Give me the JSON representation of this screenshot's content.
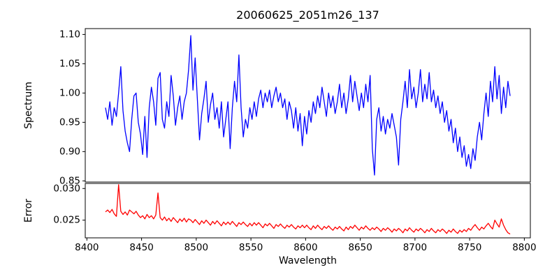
{
  "figure": {
    "background": "#ffffff",
    "axis_color": "#000000",
    "grid": false,
    "legend": null
  },
  "chart_data": [
    {
      "type": "line",
      "panel": "spectrum",
      "title": "20060625_2051m26_137",
      "ylabel": "Spectrum",
      "color": "#0000ff",
      "x_start": 8417,
      "x_step": 2,
      "xlim": [
        8398.5,
        8805.5
      ],
      "ylim": [
        0.848,
        1.11
      ],
      "yticks": [
        0.85,
        0.9,
        0.95,
        1.0,
        1.05,
        1.1
      ],
      "ytick_labels": [
        "0.85",
        "0.90",
        "0.95",
        "1.00",
        "1.05",
        "1.10"
      ],
      "values": [
        0.975,
        0.955,
        0.985,
        0.945,
        0.975,
        0.96,
        1.0,
        1.045,
        0.97,
        0.935,
        0.915,
        0.9,
        0.955,
        0.995,
        1.0,
        0.95,
        0.93,
        0.895,
        0.96,
        0.89,
        0.975,
        1.01,
        0.985,
        0.945,
        1.025,
        1.035,
        0.955,
        0.94,
        0.985,
        0.96,
        1.03,
        0.995,
        0.945,
        0.975,
        0.995,
        0.955,
        0.985,
        1.0,
        1.04,
        1.098,
        1.005,
        1.06,
        0.99,
        0.92,
        0.965,
        0.99,
        1.02,
        0.95,
        0.98,
        1.0,
        0.955,
        0.975,
        0.94,
        0.985,
        0.925,
        0.955,
        0.985,
        0.905,
        0.975,
        1.02,
        0.985,
        1.065,
        0.975,
        0.925,
        0.955,
        0.94,
        0.975,
        0.955,
        0.985,
        0.96,
        0.99,
        1.005,
        0.975,
        1.0,
        0.985,
        1.005,
        0.975,
        0.995,
        1.01,
        0.985,
        1.0,
        0.975,
        0.99,
        0.955,
        0.985,
        0.97,
        0.94,
        0.975,
        0.935,
        0.965,
        0.91,
        0.96,
        0.93,
        0.97,
        0.95,
        0.985,
        0.965,
        0.995,
        0.975,
        1.01,
        0.985,
        0.96,
        1.0,
        0.975,
        0.995,
        0.965,
        0.985,
        1.015,
        0.975,
        1.0,
        0.965,
        0.99,
        1.03,
        0.985,
        1.02,
        0.995,
        0.97,
        1.0,
        0.975,
        1.015,
        0.985,
        1.03,
        0.905,
        0.86,
        0.955,
        0.975,
        0.935,
        0.96,
        0.93,
        0.955,
        0.94,
        0.965,
        0.945,
        0.925,
        0.877,
        0.955,
        0.985,
        1.02,
        0.975,
        1.04,
        0.99,
        1.01,
        0.975,
        1.0,
        1.04,
        0.985,
        1.015,
        0.99,
        1.035,
        0.985,
        1.005,
        0.975,
        0.995,
        0.965,
        0.985,
        0.95,
        0.97,
        0.935,
        0.955,
        0.915,
        0.94,
        0.9,
        0.925,
        0.89,
        0.91,
        0.875,
        0.895,
        0.871,
        0.905,
        0.885,
        0.925,
        0.95,
        0.92,
        0.965,
        1.0,
        0.96,
        1.02,
        0.985,
        1.045,
        0.99,
        1.03,
        0.965,
        1.01,
        0.975,
        1.02,
        0.995
      ]
    },
    {
      "type": "line",
      "panel": "error",
      "ylabel": "Error",
      "xlabel": "Wavelength",
      "color": "#ff0000",
      "x_start": 8417,
      "x_step": 2,
      "xlim": [
        8398.5,
        8805.5
      ],
      "ylim": [
        0.0222,
        0.0308
      ],
      "yticks": [
        0.025,
        0.03
      ],
      "ytick_labels": [
        "0.025",
        "0.030"
      ],
      "xticks": [
        8400,
        8450,
        8500,
        8550,
        8600,
        8650,
        8700,
        8750,
        8800
      ],
      "xtick_labels": [
        "8400",
        "8450",
        "8500",
        "8550",
        "8600",
        "8650",
        "8700",
        "8750",
        "8800"
      ],
      "values": [
        0.0263,
        0.0266,
        0.0262,
        0.0267,
        0.026,
        0.0256,
        0.0306,
        0.0264,
        0.0259,
        0.0263,
        0.0258,
        0.0266,
        0.0263,
        0.026,
        0.0264,
        0.0258,
        0.0254,
        0.0257,
        0.0252,
        0.0259,
        0.0254,
        0.0257,
        0.0252,
        0.0258,
        0.0293,
        0.0254,
        0.025,
        0.0255,
        0.0249,
        0.0253,
        0.0248,
        0.0254,
        0.025,
        0.0246,
        0.0252,
        0.0248,
        0.0253,
        0.0247,
        0.0252,
        0.025,
        0.0246,
        0.0251,
        0.0247,
        0.0243,
        0.0249,
        0.0245,
        0.025,
        0.0246,
        0.0242,
        0.0248,
        0.0244,
        0.0249,
        0.0245,
        0.0241,
        0.0247,
        0.0243,
        0.0247,
        0.0243,
        0.0248,
        0.0244,
        0.024,
        0.0246,
        0.0243,
        0.0247,
        0.0243,
        0.024,
        0.0245,
        0.0241,
        0.0246,
        0.0242,
        0.0246,
        0.0242,
        0.0238,
        0.0244,
        0.0241,
        0.0245,
        0.0241,
        0.0237,
        0.0243,
        0.024,
        0.0244,
        0.024,
        0.0237,
        0.0242,
        0.0239,
        0.0243,
        0.0239,
        0.0236,
        0.0241,
        0.0238,
        0.0242,
        0.0238,
        0.0242,
        0.0238,
        0.0235,
        0.0241,
        0.0237,
        0.0242,
        0.0238,
        0.0235,
        0.024,
        0.0237,
        0.0241,
        0.0237,
        0.0234,
        0.0239,
        0.0236,
        0.024,
        0.0236,
        0.0233,
        0.0239,
        0.0235,
        0.024,
        0.0237,
        0.0242,
        0.0238,
        0.0234,
        0.0239,
        0.0236,
        0.0241,
        0.0237,
        0.0234,
        0.0238,
        0.0235,
        0.0239,
        0.0236,
        0.0232,
        0.0237,
        0.0234,
        0.0238,
        0.0235,
        0.0231,
        0.0236,
        0.0233,
        0.0237,
        0.0234,
        0.023,
        0.0236,
        0.0233,
        0.0238,
        0.0234,
        0.0231,
        0.0236,
        0.0233,
        0.0237,
        0.0234,
        0.023,
        0.0235,
        0.0232,
        0.0237,
        0.0233,
        0.023,
        0.0235,
        0.0232,
        0.0236,
        0.0233,
        0.0229,
        0.0234,
        0.0231,
        0.0236,
        0.0232,
        0.0229,
        0.0234,
        0.0231,
        0.0235,
        0.0232,
        0.0237,
        0.0234,
        0.0239,
        0.0243,
        0.0238,
        0.0234,
        0.0239,
        0.0236,
        0.0241,
        0.0245,
        0.024,
        0.0236,
        0.025,
        0.0244,
        0.0239,
        0.0252,
        0.0242,
        0.0235,
        0.023,
        0.0228
      ]
    }
  ]
}
